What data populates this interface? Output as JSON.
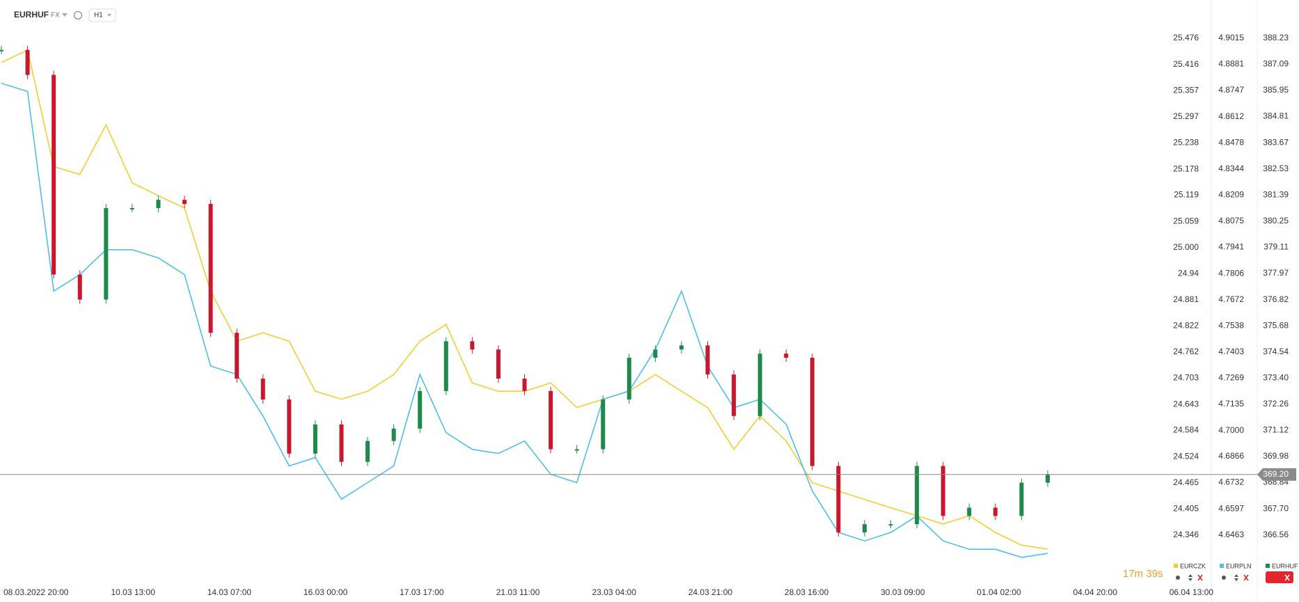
{
  "header": {
    "symbol": "EURHUF",
    "market": "FX",
    "interval": "H1"
  },
  "chart_data": {
    "type": "line",
    "xtick_labels": [
      "08.03.2022  20:00",
      "10.03  13:00",
      "14.03  07:00",
      "16.03  00:00",
      "17.03  17:00",
      "21.03  11:00",
      "23.03  04:00",
      "24.03  21:00",
      "28.03  16:00",
      "30.03  09:00",
      "01.04  02:00",
      "04.04  20:00",
      "06.04  13:00"
    ],
    "grid": false,
    "ylim": [
      24.257,
      25.51
    ],
    "yticks": [
      25.476,
      25.416,
      25.357,
      25.297,
      25.238,
      25.178,
      25.119,
      25.059,
      {
        "value": 25,
        "label": "25.000"
      },
      24.94,
      24.881,
      24.822,
      24.762,
      24.703,
      24.643,
      24.584,
      24.524,
      24.465,
      24.405,
      24.346
    ],
    "y2lim": [
      4.6262,
      4.9092
    ],
    "y2ticks": [
      4.9015,
      4.8881,
      4.8747,
      4.8612,
      4.8478,
      4.8344,
      4.8209,
      4.8075,
      4.7941,
      4.7806,
      4.7672,
      4.7538,
      4.7403,
      4.7269,
      4.7135,
      {
        "value": 4.7,
        "label": "4.7000"
      },
      4.6866,
      4.6732,
      4.6597,
      4.6463
    ],
    "y3lim": [
      364.85,
      388.88
    ],
    "y3ticks": [
      388.23,
      387.09,
      385.95,
      384.81,
      383.67,
      382.53,
      381.39,
      380.25,
      379.11,
      377.97,
      376.82,
      375.68,
      374.54,
      {
        "value": 373.4,
        "label": "373.40"
      },
      372.26,
      371.12,
      369.98,
      368.84,
      {
        "value": 367.7,
        "label": "367.70"
      },
      366.56
    ],
    "last_price": {
      "value": 369.2,
      "label": "369.20"
    },
    "countdown": "17m 39s",
    "series": [
      {
        "name": "EURCZK",
        "color": "#f5cd32",
        "axis": "y",
        "type": "line",
        "values": [
          25.421,
          25.449,
          25.184,
          25.166,
          25.279,
          25.147,
          25.118,
          25.09,
          24.901,
          24.787,
          24.806,
          24.787,
          24.673,
          24.655,
          24.673,
          24.711,
          24.787,
          24.825,
          24.692,
          24.673,
          24.673,
          24.692,
          24.636,
          24.655,
          24.673,
          24.711,
          24.673,
          24.636,
          24.541,
          24.617,
          24.56,
          24.465,
          24.446,
          24.427,
          24.408,
          24.39,
          24.371,
          24.39,
          24.352,
          24.323,
          24.314
        ]
      },
      {
        "name": "EURPLN",
        "color": "#4dbfea",
        "axis": "y2",
        "type": "line",
        "values": [
          4.8784,
          4.8742,
          4.7716,
          4.7801,
          4.7929,
          4.7929,
          4.7887,
          4.7801,
          4.7331,
          4.7288,
          4.7074,
          4.6818,
          4.6861,
          4.6647,
          4.6732,
          4.6818,
          4.7288,
          4.6989,
          4.6903,
          4.6882,
          4.6946,
          4.6775,
          4.6732,
          4.716,
          4.7203,
          4.7416,
          4.7716,
          4.7331,
          4.7117,
          4.716,
          4.7032,
          4.669,
          4.6476,
          4.6433,
          4.6476,
          4.6561,
          4.6433,
          4.639,
          4.639,
          4.6348,
          4.6369
        ]
      },
      {
        "name": "EURHUF",
        "color": "#1d8a4b",
        "down_color": "#c8182e",
        "axis": "y3",
        "type": "candle",
        "values": [
          387.72,
          386.63,
          377.92,
          376.83,
          380.82,
          380.82,
          381.18,
          381.0,
          375.38,
          373.38,
          372.47,
          370.11,
          371.38,
          369.75,
          370.66,
          371.2,
          372.84,
          375.01,
          374.65,
          373.38,
          372.84,
          370.3,
          370.3,
          372.47,
          374.29,
          374.65,
          374.83,
          373.56,
          371.75,
          374.47,
          374.29,
          369.57,
          366.67,
          367.03,
          367.03,
          369.57,
          367.39,
          367.75,
          367.39,
          368.84,
          369.2
        ]
      }
    ]
  }
}
